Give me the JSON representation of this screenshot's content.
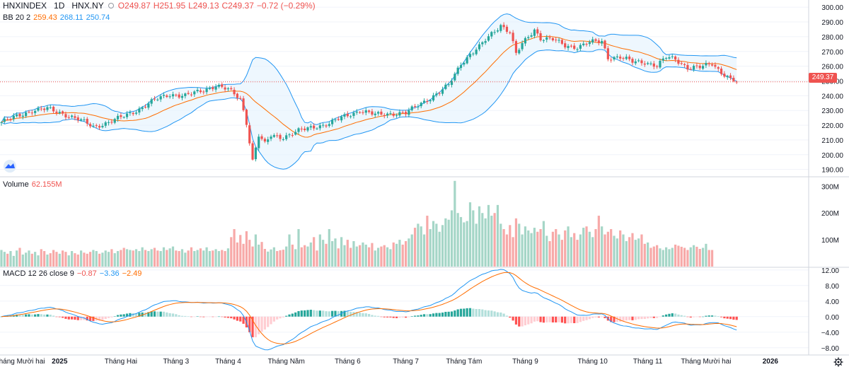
{
  "header": {
    "symbol": "HNXINDEX",
    "interval": "1D",
    "exchange": "HNX.NY",
    "open": "O249.87",
    "high": "H251.95",
    "low": "L249.13",
    "close": "C249.37",
    "change": "−0.72 (−0.29%)"
  },
  "bb_legend": {
    "name": "BB 20 2",
    "middle": "259.43",
    "upper": "268.11",
    "lower": "250.74"
  },
  "volume_legend": {
    "name": "Volume",
    "value": "62.155M"
  },
  "macd_legend": {
    "name": "MACD 12 26 close 9",
    "hist": "−0.87",
    "macd": "−3.36",
    "signal": "−2.49"
  },
  "price_tag": "249.37",
  "colors": {
    "up": "#26a69a",
    "down": "#ef5350",
    "upVol": "#a5d6c7",
    "downVol": "#f7a9a8",
    "bbMid": "#ff6d00",
    "bbBand": "#2196f3",
    "bbFill": "#e3f2fd",
    "macd": "#2196f3",
    "signal": "#ff6d00"
  },
  "chart_data": {
    "type": "candlestick",
    "price_axis": {
      "ticks": [
        300,
        290,
        280,
        270,
        260,
        250,
        240,
        230,
        220,
        210,
        200,
        190
      ],
      "labels": [
        "300.00",
        "290.00",
        "280.00",
        "270.00",
        "260.00",
        "250.00",
        "240.00",
        "230.00",
        "220.00",
        "210.00",
        "200.00",
        "190.00"
      ],
      "range": [
        186,
        302
      ]
    },
    "volume_axis": {
      "ticks": [
        300,
        200,
        100
      ],
      "labels": [
        "300M",
        "200M",
        "100M"
      ],
      "unit": "M",
      "range": [
        0,
        330
      ]
    },
    "macd_axis": {
      "ticks": [
        12,
        8,
        4,
        0,
        -4,
        -8
      ],
      "labels": [
        "12.00",
        "8.00",
        "4.00",
        "0.00",
        "−4.00",
        "−8.00"
      ],
      "range": [
        -9.5,
        12.5
      ]
    },
    "time_axis": {
      "labels": [
        "Tháng Mười hai",
        "2025",
        "Tháng Hai",
        "Tháng 3",
        "Tháng 4",
        "Tháng Năm",
        "Tháng 6",
        "Tháng 7",
        "Tháng Tám",
        "Tháng 9",
        "Tháng 10",
        "Tháng 11",
        "Tháng Mười hai",
        "2026"
      ],
      "bold": [
        "2025",
        "2026"
      ],
      "bar_index": [
        -3,
        19,
        39,
        57,
        74,
        93,
        113,
        132,
        151,
        171,
        193,
        211,
        230,
        251
      ]
    },
    "last_close": 249.37,
    "close_anchors": [
      [
        0,
        222
      ],
      [
        5,
        226
      ],
      [
        10,
        230
      ],
      [
        15,
        231
      ],
      [
        20,
        228
      ],
      [
        25,
        224
      ],
      [
        30,
        219
      ],
      [
        35,
        222
      ],
      [
        40,
        226
      ],
      [
        45,
        231
      ],
      [
        50,
        237
      ],
      [
        55,
        241
      ],
      [
        60,
        240
      ],
      [
        65,
        243
      ],
      [
        70,
        247
      ],
      [
        74,
        244
      ],
      [
        78,
        238
      ],
      [
        80,
        222
      ],
      [
        82,
        196
      ],
      [
        84,
        213
      ],
      [
        86,
        207
      ],
      [
        88,
        213
      ],
      [
        92,
        212
      ],
      [
        97,
        216
      ],
      [
        102,
        219
      ],
      [
        107,
        221
      ],
      [
        112,
        226
      ],
      [
        117,
        230
      ],
      [
        122,
        227
      ],
      [
        127,
        228
      ],
      [
        132,
        228
      ],
      [
        137,
        235
      ],
      [
        142,
        241
      ],
      [
        146,
        247
      ],
      [
        150,
        262
      ],
      [
        153,
        268
      ],
      [
        156,
        273
      ],
      [
        160,
        282
      ],
      [
        163,
        288
      ],
      [
        166,
        283
      ],
      [
        168,
        268
      ],
      [
        170,
        275
      ],
      [
        174,
        285
      ],
      [
        176,
        279
      ],
      [
        180,
        278
      ],
      [
        184,
        274
      ],
      [
        188,
        273
      ],
      [
        192,
        276
      ],
      [
        196,
        277
      ],
      [
        198,
        266
      ],
      [
        202,
        266
      ],
      [
        206,
        263
      ],
      [
        210,
        263
      ],
      [
        214,
        260
      ],
      [
        217,
        266
      ],
      [
        220,
        265
      ],
      [
        224,
        259
      ],
      [
        228,
        259
      ],
      [
        232,
        262
      ],
      [
        235,
        256
      ],
      [
        238,
        251
      ],
      [
        240,
        249.37
      ]
    ],
    "volume_millions": [
      62,
      55,
      48,
      58,
      40,
      60,
      70,
      45,
      52,
      60,
      48,
      55,
      42,
      65,
      58,
      45,
      50,
      62,
      55,
      48,
      60,
      55,
      42,
      58,
      50,
      45,
      60,
      52,
      48,
      55,
      62,
      58,
      48,
      52,
      60,
      55,
      65,
      50,
      58,
      62,
      70,
      65,
      62,
      60,
      65,
      58,
      72,
      62,
      58,
      65,
      70,
      60,
      58,
      72,
      62,
      68,
      75,
      60,
      58,
      65,
      52,
      60,
      72,
      58,
      62,
      68,
      60,
      72,
      58,
      60,
      65,
      58,
      62,
      58,
      68,
      110,
      140,
      90,
      118,
      85,
      132,
      100,
      75,
      120,
      82,
      92,
      66,
      56,
      64,
      72,
      58,
      61,
      63,
      75,
      120,
      82,
      65,
      140,
      72,
      80,
      75,
      90,
      110,
      60,
      120,
      100,
      85,
      140,
      95,
      105,
      68,
      110,
      80,
      100,
      70,
      95,
      75,
      80,
      90,
      82,
      72,
      88,
      60,
      70,
      75,
      80,
      72,
      65,
      90,
      85,
      100,
      82,
      95,
      105,
      120,
      145,
      160,
      150,
      120,
      190,
      140,
      170,
      160,
      130,
      155,
      180,
      175,
      210,
      320,
      200,
      185,
      165,
      170,
      240,
      210,
      160,
      225,
      200,
      180,
      230,
      190,
      200,
      230,
      160,
      140,
      120,
      155,
      110,
      180,
      160,
      120,
      150,
      135,
      125,
      145,
      130,
      140,
      170,
      115,
      95,
      130,
      140,
      120,
      100,
      135,
      150,
      110,
      125,
      100,
      120,
      145,
      150,
      130,
      110,
      140,
      190,
      150,
      120,
      130,
      140,
      115,
      105,
      135,
      120,
      95,
      110,
      125,
      100,
      105,
      120,
      85,
      90,
      70,
      75,
      80,
      68,
      62,
      72,
      65,
      70,
      82,
      78,
      74,
      70,
      62,
      72,
      80,
      74,
      66,
      70,
      85,
      62,
      62
    ]
  }
}
